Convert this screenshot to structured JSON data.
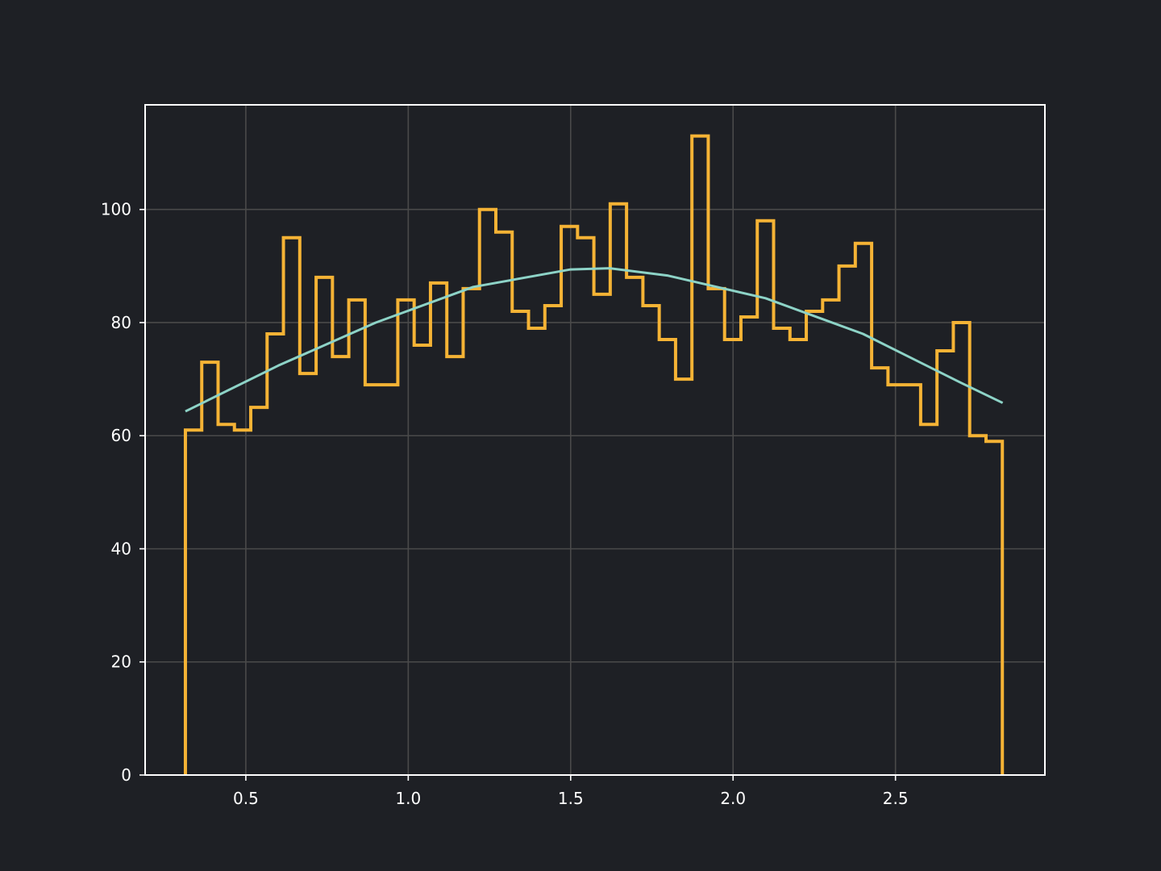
{
  "chart_data": {
    "type": "step-histogram",
    "title": "",
    "xlabel": "",
    "ylabel": "",
    "xlim": [
      0.19,
      2.96
    ],
    "ylim": [
      0,
      118.5
    ],
    "grid": true,
    "legend": "none",
    "xticks": [
      0.5,
      1.0,
      1.5,
      2.0,
      2.5
    ],
    "xtick_labels": [
      "0.5",
      "1.0",
      "1.5",
      "2.0",
      "2.5"
    ],
    "yticks": [
      0,
      20,
      40,
      60,
      80,
      100
    ],
    "ytick_labels": [
      "0",
      "20",
      "40",
      "60",
      "80",
      "100"
    ],
    "histogram": {
      "bin_start": 0.314,
      "bin_width": 0.0503,
      "counts": [
        61,
        73,
        62,
        61,
        65,
        78,
        95,
        71,
        88,
        74,
        84,
        69,
        69,
        84,
        76,
        87,
        74,
        86,
        100,
        96,
        82,
        79,
        83,
        97,
        95,
        85,
        101,
        88,
        83,
        77,
        70,
        113,
        86,
        77,
        81,
        98,
        79,
        77,
        82,
        84,
        90,
        94,
        72,
        69,
        69,
        62,
        75,
        80,
        60,
        59
      ],
      "color": "#f5b335"
    },
    "fit_curve": {
      "x": [
        0.314,
        0.6,
        0.9,
        1.2,
        1.5,
        1.62,
        1.8,
        2.1,
        2.4,
        2.7,
        2.83
      ],
      "y": [
        64.3,
        72.4,
        80.0,
        86.3,
        89.4,
        89.6,
        88.3,
        84.3,
        78.0,
        69.4,
        65.8
      ],
      "color": "#8dd3c7"
    },
    "colors": {
      "background": "#1e2025",
      "grid": "#4a4a4a",
      "axes": "#ffffff"
    }
  }
}
